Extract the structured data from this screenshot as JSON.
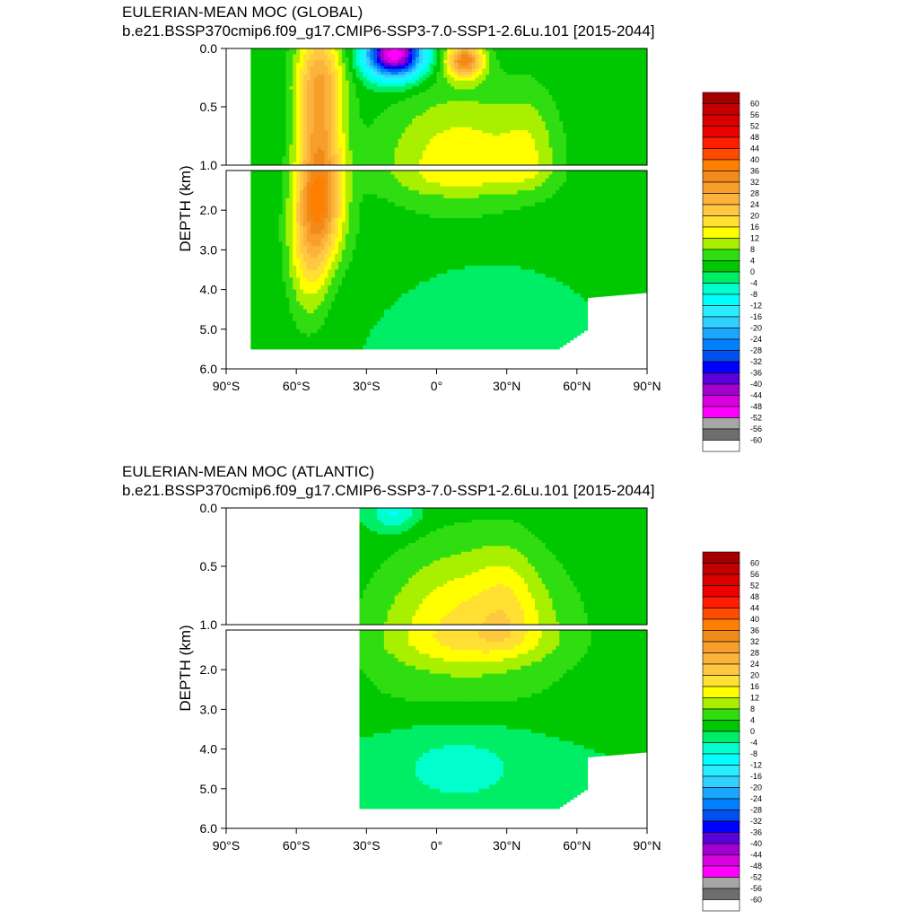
{
  "chart_data": [
    {
      "type": "heatmap",
      "title": "EULERIAN-MEAN MOC (GLOBAL)",
      "subtitle": "b.e21.BSSP370cmip6.f09_g17.CMIP6-SSP3-7.0-SSP1-2.6Lu.101 [2015-2044]",
      "xlabel": "",
      "ylabel": "DEPTH (km)",
      "xlim": [
        -90,
        90
      ],
      "ylim": [
        6.0,
        0.0
      ],
      "depth_split_km": 1.0,
      "x_ticks": [
        "90°S",
        "60°S",
        "30°S",
        "0°",
        "30°N",
        "60°N",
        "90°N"
      ],
      "y_ticks_upper": [
        "0.0",
        "0.5",
        "1.0"
      ],
      "y_ticks_lower": [
        "2.0",
        "3.0",
        "4.0",
        "5.0",
        "6.0"
      ],
      "ocean_extent_lat": [
        -80,
        90
      ],
      "colorbar_labels": [
        "60",
        "56",
        "52",
        "48",
        "44",
        "40",
        "36",
        "32",
        "28",
        "24",
        "20",
        "16",
        "12",
        "8",
        "4",
        "0",
        "-4",
        "-8",
        "-12",
        "-16",
        "-20",
        "-24",
        "-28",
        "-32",
        "-36",
        "-40",
        "-44",
        "-48",
        "-52",
        "-56",
        "-60"
      ],
      "features": [
        {
          "kind": "cell",
          "lat": -50,
          "depth": 1.5,
          "lat_halfwidth": 10,
          "depth_halfwidth": 1.7,
          "max": 34
        },
        {
          "kind": "cell",
          "lat": -55,
          "depth": 3.2,
          "lat_halfwidth": 9,
          "depth_halfwidth": 1.8,
          "max": 12
        },
        {
          "kind": "cell",
          "lat": -50,
          "depth": 0.25,
          "lat_halfwidth": 12,
          "depth_halfwidth": 0.3,
          "max": 8
        },
        {
          "kind": "cell",
          "lat": 10,
          "depth": 1.0,
          "lat_halfwidth": 35,
          "depth_halfwidth": 0.7,
          "max": 14
        },
        {
          "kind": "cell",
          "lat": 40,
          "depth": 0.9,
          "lat_halfwidth": 12,
          "depth_halfwidth": 0.6,
          "max": 6
        },
        {
          "kind": "cell",
          "lat": 10,
          "depth": 2.7,
          "lat_halfwidth": 60,
          "depth_halfwidth": 1.5,
          "max": 4
        },
        {
          "kind": "cell",
          "lat": 20,
          "depth": 4.2,
          "lat_halfwidth": 30,
          "depth_halfwidth": 1.2,
          "max": -5
        },
        {
          "kind": "cell",
          "lat": -18,
          "depth": 0.05,
          "lat_halfwidth": 12,
          "depth_halfwidth": 0.2,
          "max": -52
        },
        {
          "kind": "cell",
          "lat": 12,
          "depth": 0.1,
          "lat_halfwidth": 8,
          "depth_halfwidth": 0.15,
          "max": 32
        }
      ]
    },
    {
      "type": "heatmap",
      "title": "EULERIAN-MEAN MOC (ATLANTIC)",
      "subtitle": "b.e21.BSSP370cmip6.f09_g17.CMIP6-SSP3-7.0-SSP1-2.6Lu.101 [2015-2044]",
      "xlabel": "",
      "ylabel": "DEPTH (km)",
      "xlim": [
        -90,
        90
      ],
      "ylim": [
        6.0,
        0.0
      ],
      "depth_split_km": 1.0,
      "x_ticks": [
        "90°S",
        "60°S",
        "30°S",
        "0°",
        "30°N",
        "60°N",
        "90°N"
      ],
      "y_ticks_upper": [
        "0.0",
        "0.5",
        "1.0"
      ],
      "y_ticks_lower": [
        "2.0",
        "3.0",
        "4.0",
        "5.0",
        "6.0"
      ],
      "ocean_extent_lat": [
        -33,
        90
      ],
      "colorbar_labels": [
        "60",
        "56",
        "52",
        "48",
        "44",
        "40",
        "36",
        "32",
        "28",
        "24",
        "20",
        "16",
        "12",
        "8",
        "4",
        "0",
        "-4",
        "-8",
        "-12",
        "-16",
        "-20",
        "-24",
        "-28",
        "-32",
        "-36",
        "-40",
        "-44",
        "-48",
        "-52",
        "-56",
        "-60"
      ],
      "features": [
        {
          "kind": "cell",
          "lat": 15,
          "depth": 1.1,
          "lat_halfwidth": 40,
          "depth_halfwidth": 0.8,
          "max": 17
        },
        {
          "kind": "cell",
          "lat": 30,
          "depth": 0.9,
          "lat_halfwidth": 12,
          "depth_halfwidth": 0.6,
          "max": 5
        },
        {
          "kind": "cell",
          "lat": 10,
          "depth": 2.5,
          "lat_halfwidth": 55,
          "depth_halfwidth": 1.2,
          "max": 6
        },
        {
          "kind": "cell",
          "lat": 10,
          "depth": 4.3,
          "lat_halfwidth": 35,
          "depth_halfwidth": 1.3,
          "max": -6
        },
        {
          "kind": "cell",
          "lat": -18,
          "depth": 0.05,
          "lat_halfwidth": 10,
          "depth_halfwidth": 0.15,
          "max": -10
        }
      ]
    }
  ]
}
